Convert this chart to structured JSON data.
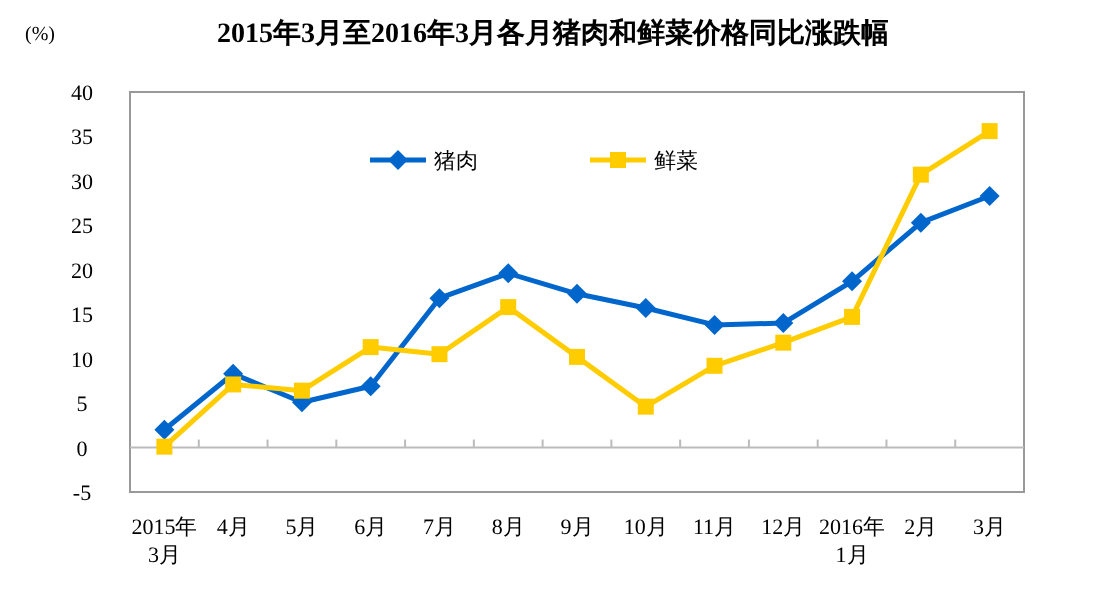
{
  "chart_data": {
    "type": "line",
    "title": "2015年3月至2016年3月各月猪肉和鲜菜价格同比涨跌幅",
    "ylabel": "(%)",
    "categories": [
      "2015年\n3月",
      "4月",
      "5月",
      "6月",
      "7月",
      "8月",
      "9月",
      "10月",
      "11月",
      "12月",
      "2016年\n1月",
      "2月",
      "3月"
    ],
    "series": [
      {
        "name": "猪肉",
        "color": "#0066cc",
        "marker": "diamond",
        "values": [
          2.0,
          8.3,
          5.1,
          6.9,
          16.8,
          19.6,
          17.3,
          15.7,
          13.8,
          14.0,
          18.7,
          25.3,
          28.3
        ]
      },
      {
        "name": "鲜菜",
        "color": "#ffcc00",
        "marker": "square",
        "values": [
          0.1,
          7.1,
          6.4,
          11.3,
          10.5,
          15.8,
          10.2,
          4.6,
          9.2,
          11.8,
          14.7,
          30.7,
          35.6
        ]
      }
    ],
    "ylim": [
      -5,
      40
    ],
    "yticks": [
      -5,
      0,
      5,
      10,
      15,
      20,
      25,
      30,
      35,
      40
    ],
    "legend": "top",
    "line_style": "solid"
  }
}
